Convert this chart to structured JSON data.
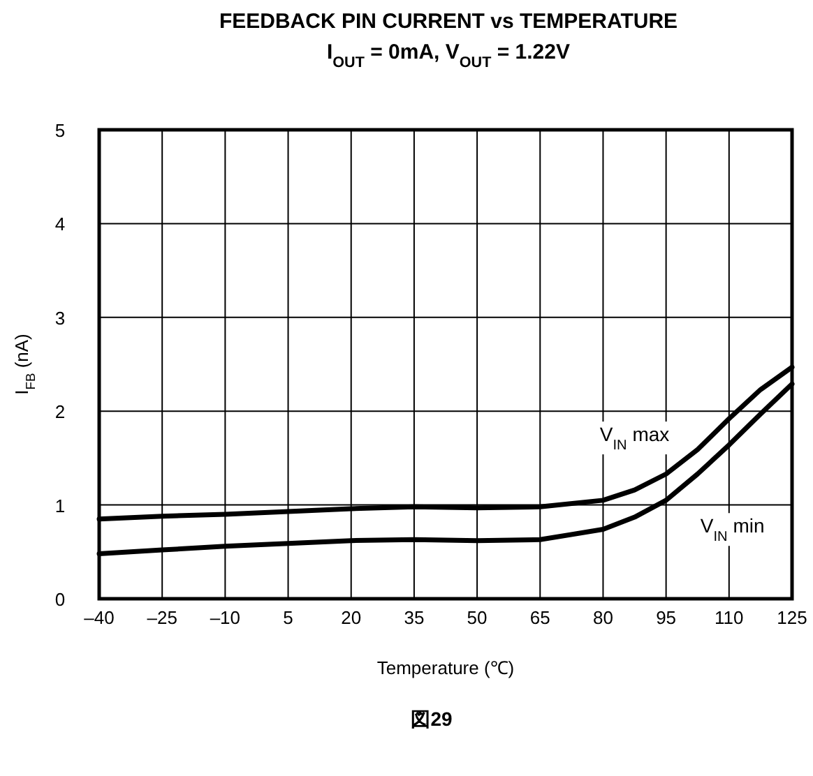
{
  "chart_data": {
    "type": "line",
    "title": "FEEDBACK PIN CURRENT vs TEMPERATURE",
    "subtitle": "I$_{OUT}$ = 0mA, V$_{OUT}$ = 1.22V",
    "xlabel": "Temperature (℃)",
    "ylabel": "I$_{FB}$ (nA)",
    "annotations": [
      "図29"
    ],
    "xlim": [
      -40,
      125
    ],
    "ylim": [
      0,
      5
    ],
    "xticks": [
      {
        "value": -40,
        "label": "–40"
      },
      {
        "value": -25,
        "label": "–25"
      },
      {
        "value": -10,
        "label": "–10"
      },
      5,
      20,
      35,
      50,
      65,
      80,
      95,
      110,
      125
    ],
    "yticks": [
      0,
      1,
      2,
      3,
      4,
      5
    ],
    "grid": true,
    "marker": "none",
    "line_style": "solid",
    "x": [
      -40,
      -25,
      -10,
      5,
      20,
      35,
      50,
      65,
      80,
      87.5,
      95,
      102.5,
      110,
      117.5,
      125
    ],
    "series": [
      {
        "name": "V$_{IN}$ max",
        "color": "#000000",
        "values": [
          0.85,
          0.88,
          0.9,
          0.93,
          0.96,
          0.98,
          0.97,
          0.98,
          1.05,
          1.16,
          1.33,
          1.59,
          1.92,
          2.23,
          2.47
        ]
      },
      {
        "name": "V$_{IN}$ min",
        "color": "#000000",
        "values": [
          0.48,
          0.52,
          0.56,
          0.59,
          0.62,
          0.63,
          0.62,
          0.63,
          0.74,
          0.87,
          1.05,
          1.33,
          1.64,
          1.97,
          2.29
        ]
      }
    ]
  }
}
